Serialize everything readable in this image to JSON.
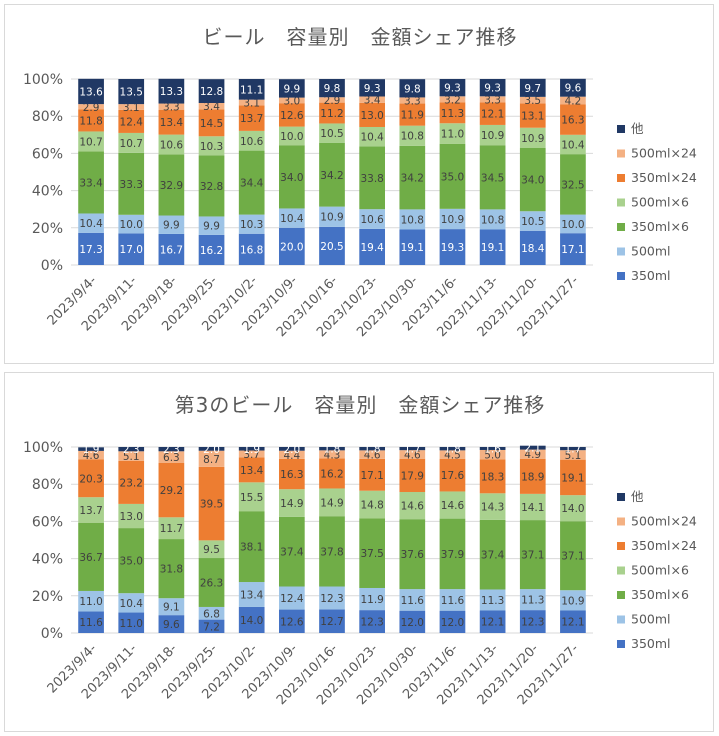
{
  "chart_data": [
    {
      "type": "bar",
      "stacked": true,
      "title": "ビール　容量別　金額シェア推移",
      "categories": [
        "2023/9/4-",
        "2023/9/11-",
        "2023/9/18-",
        "2023/9/25-",
        "2023/10/2-",
        "2023/10/9-",
        "2023/10/16-",
        "2023/10/23-",
        "2023/10/30-",
        "2023/11/6-",
        "2023/11/13-",
        "2023/11/20-",
        "2023/11/27-"
      ],
      "ylim": [
        0,
        100
      ],
      "yticks": [
        "0%",
        "20%",
        "40%",
        "60%",
        "80%",
        "100%"
      ],
      "legend_position": "right",
      "grid": true,
      "series": [
        {
          "name": "350ml",
          "color": "#4472c4",
          "label_color": "#ffffff",
          "values": [
            17.3,
            17.0,
            16.7,
            16.2,
            16.8,
            20.0,
            20.5,
            19.4,
            19.1,
            19.3,
            19.1,
            18.4,
            17.1
          ]
        },
        {
          "name": "500ml",
          "color": "#9dc3e6",
          "label_color": "#404040",
          "values": [
            10.4,
            10.0,
            9.9,
            9.9,
            10.3,
            10.4,
            10.9,
            10.6,
            10.8,
            10.9,
            10.8,
            10.5,
            10.0
          ]
        },
        {
          "name": "350ml×6",
          "color": "#70ad47",
          "label_color": "#404040",
          "values": [
            33.4,
            33.3,
            32.9,
            32.8,
            34.4,
            34.0,
            34.2,
            33.8,
            34.2,
            35.0,
            34.5,
            34.0,
            32.5
          ]
        },
        {
          "name": "500ml×6",
          "color": "#a9d18e",
          "label_color": "#404040",
          "values": [
            10.7,
            10.7,
            10.6,
            10.3,
            10.6,
            10.0,
            10.5,
            10.4,
            10.8,
            11.0,
            10.9,
            10.9,
            10.4
          ]
        },
        {
          "name": "350ml×24",
          "color": "#ed7d31",
          "label_color": "#404040",
          "values": [
            11.8,
            12.4,
            13.4,
            14.5,
            13.7,
            12.6,
            11.2,
            13.0,
            11.9,
            11.3,
            12.1,
            13.1,
            16.3
          ]
        },
        {
          "name": "500ml×24",
          "color": "#f4b183",
          "label_color": "#404040",
          "values": [
            2.9,
            3.1,
            3.3,
            3.4,
            3.1,
            3.0,
            2.9,
            3.4,
            3.3,
            3.2,
            3.3,
            3.5,
            4.2
          ]
        },
        {
          "name": "他",
          "color": "#203864",
          "label_color": "#ffffff",
          "values": [
            13.6,
            13.5,
            13.3,
            12.8,
            11.1,
            9.9,
            9.8,
            9.3,
            9.8,
            9.3,
            9.3,
            9.7,
            9.6
          ]
        }
      ]
    },
    {
      "type": "bar",
      "stacked": true,
      "title": "第3のビール　容量別　金額シェア推移",
      "categories": [
        "2023/9/4-",
        "2023/9/11-",
        "2023/9/18-",
        "2023/9/25-",
        "2023/10/2-",
        "2023/10/9-",
        "2023/10/16-",
        "2023/10/23-",
        "2023/10/30-",
        "2023/11/6-",
        "2023/11/13-",
        "2023/11/20-",
        "2023/11/27-"
      ],
      "ylim": [
        0,
        100
      ],
      "yticks": [
        "0%",
        "20%",
        "40%",
        "60%",
        "80%",
        "100%"
      ],
      "legend_position": "right",
      "grid": true,
      "series": [
        {
          "name": "350ml",
          "color": "#4472c4",
          "label_color": "#404040",
          "values": [
            11.6,
            11.0,
            9.6,
            7.2,
            14.0,
            12.6,
            12.7,
            12.3,
            12.0,
            12.0,
            12.1,
            12.3,
            12.1
          ]
        },
        {
          "name": "500ml",
          "color": "#9dc3e6",
          "label_color": "#404040",
          "values": [
            11.0,
            10.4,
            9.1,
            6.8,
            13.4,
            12.4,
            12.3,
            11.9,
            11.6,
            11.6,
            11.3,
            11.3,
            10.9
          ]
        },
        {
          "name": "350ml×6",
          "color": "#70ad47",
          "label_color": "#404040",
          "values": [
            36.7,
            35.0,
            31.8,
            26.3,
            38.1,
            37.4,
            37.8,
            37.5,
            37.6,
            37.9,
            37.4,
            37.1,
            37.1
          ]
        },
        {
          "name": "500ml×6",
          "color": "#a9d18e",
          "label_color": "#404040",
          "values": [
            13.7,
            13.0,
            11.7,
            9.5,
            15.5,
            14.9,
            14.9,
            14.8,
            14.6,
            14.6,
            14.3,
            14.1,
            14.0
          ]
        },
        {
          "name": "350ml×24",
          "color": "#ed7d31",
          "label_color": "#404040",
          "values": [
            20.3,
            23.2,
            29.2,
            39.5,
            13.4,
            16.3,
            16.2,
            17.1,
            17.9,
            17.6,
            18.3,
            18.9,
            19.1
          ]
        },
        {
          "name": "500ml×24",
          "color": "#f4b183",
          "label_color": "#404040",
          "values": [
            4.6,
            5.1,
            6.3,
            8.7,
            3.7,
            4.4,
            4.3,
            4.6,
            4.6,
            4.5,
            5.0,
            4.9,
            5.1
          ]
        },
        {
          "name": "他",
          "color": "#203864",
          "label_color": "#ffffff",
          "values": [
            1.9,
            2.3,
            2.3,
            2.0,
            1.9,
            2.0,
            1.8,
            1.8,
            1.7,
            1.8,
            1.6,
            2.1,
            1.7
          ]
        }
      ]
    }
  ]
}
